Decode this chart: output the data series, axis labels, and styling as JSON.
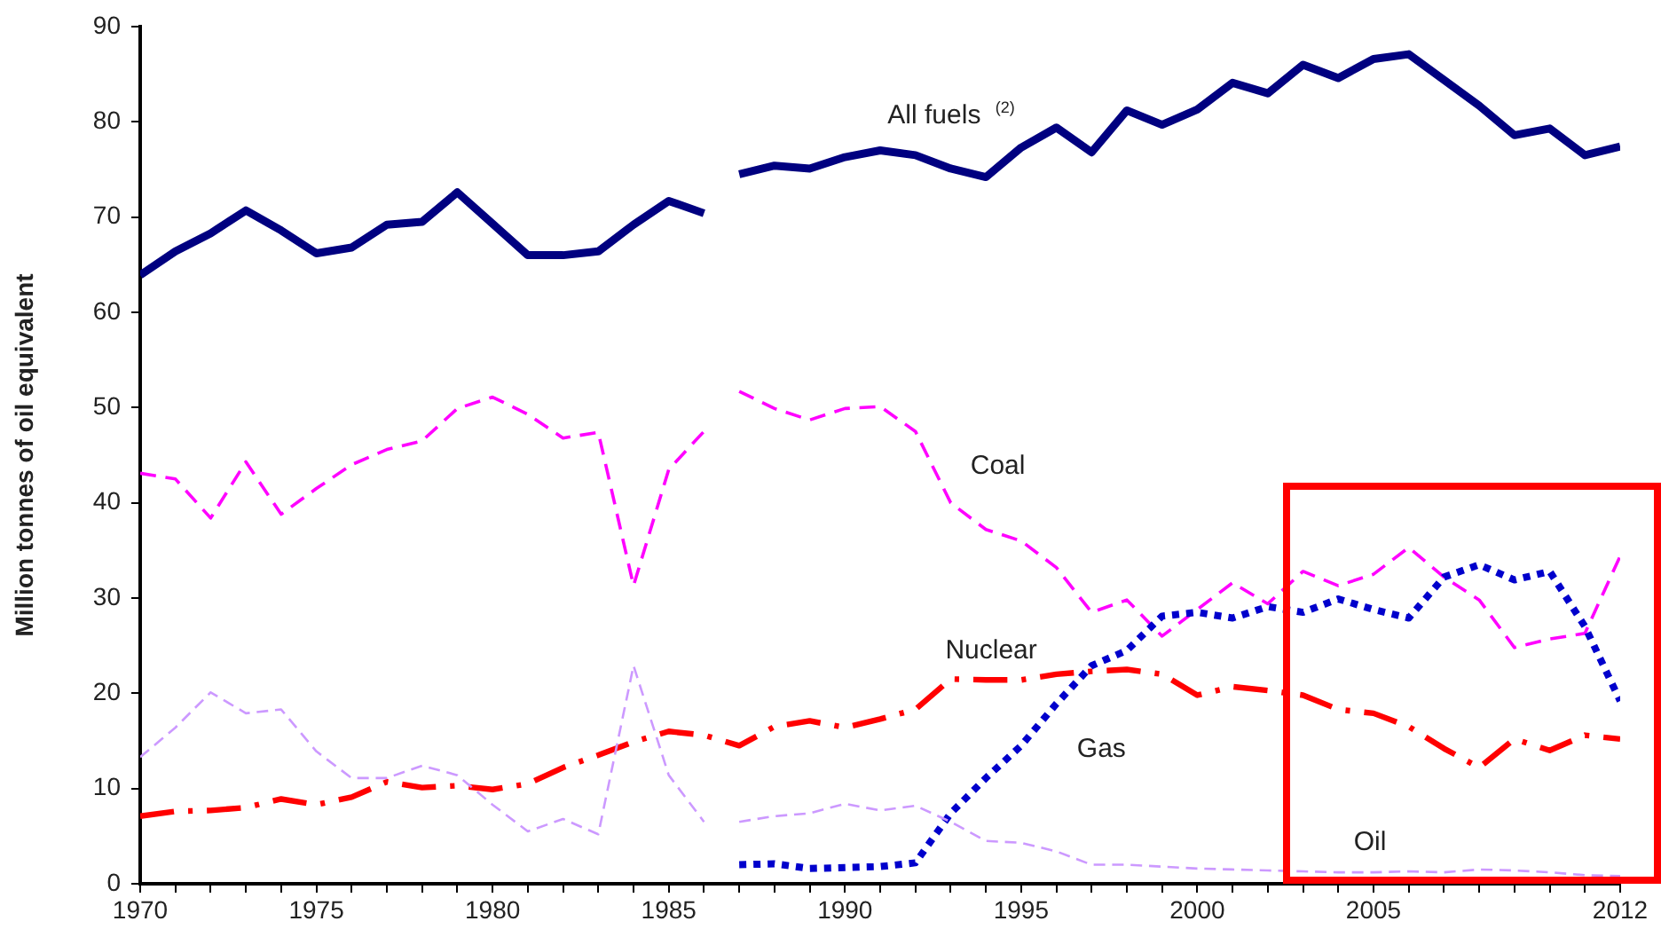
{
  "chart_data": {
    "type": "line",
    "ylabel": "Million tonnes of oil equivalent",
    "x": [
      1970,
      1971,
      1972,
      1973,
      1974,
      1975,
      1976,
      1977,
      1978,
      1979,
      1980,
      1981,
      1982,
      1983,
      1984,
      1985,
      1986,
      1986.5,
      1987,
      1988,
      1989,
      1990,
      1991,
      1992,
      1993,
      1994,
      1995,
      1996,
      1997,
      1998,
      1999,
      2000,
      2001,
      2002,
      2003,
      2004,
      2005,
      2006,
      2007,
      2008,
      2009,
      2010,
      2011,
      2012
    ],
    "xlim": [
      1970,
      2012
    ],
    "xticks": [
      1970,
      {
        "value": 1971,
        "label": null
      },
      {
        "value": 1972,
        "label": null
      },
      {
        "value": 1973,
        "label": null
      },
      {
        "value": 1974,
        "label": null
      },
      1975,
      {
        "value": 1976,
        "label": null
      },
      {
        "value": 1977,
        "label": null
      },
      {
        "value": 1978,
        "label": null
      },
      {
        "value": 1979,
        "label": null
      },
      1980,
      {
        "value": 1981,
        "label": null
      },
      {
        "value": 1982,
        "label": null
      },
      {
        "value": 1983,
        "label": null
      },
      {
        "value": 1984,
        "label": null
      },
      1985,
      {
        "value": 1986,
        "label": null
      },
      {
        "value": 1987,
        "label": null
      },
      {
        "value": 1988,
        "label": null
      },
      {
        "value": 1989,
        "label": null
      },
      1990,
      {
        "value": 1991,
        "label": null
      },
      {
        "value": 1992,
        "label": null
      },
      {
        "value": 1993,
        "label": null
      },
      {
        "value": 1994,
        "label": null
      },
      1995,
      {
        "value": 1996,
        "label": null
      },
      {
        "value": 1997,
        "label": null
      },
      {
        "value": 1998,
        "label": null
      },
      {
        "value": 1999,
        "label": null
      },
      2000,
      {
        "value": 2001,
        "label": null
      },
      {
        "value": 2002,
        "label": null
      },
      {
        "value": 2003,
        "label": null
      },
      {
        "value": 2004,
        "label": null
      },
      2005,
      {
        "value": 2006,
        "label": null
      },
      {
        "value": 2007,
        "label": null
      },
      {
        "value": 2008,
        "label": null
      },
      {
        "value": 2009,
        "label": null
      },
      {
        "value": 2010,
        "label": null
      },
      {
        "value": 2011,
        "label": null
      },
      2012
    ],
    "ylim": [
      0,
      90
    ],
    "yticks": [
      0,
      10,
      20,
      30,
      40,
      50,
      60,
      70,
      80,
      90
    ],
    "series": [
      {
        "name": "All fuels $^{(2)}$",
        "color": "#000080",
        "line_style": "solid",
        "values": [
          63.9,
          66.4,
          68.3,
          70.7,
          68.6,
          66.2,
          66.8,
          69.2,
          69.5,
          72.6,
          69.3,
          66.0,
          66.0,
          66.4,
          69.2,
          71.7,
          70.4,
          null,
          74.5,
          75.4,
          75.1,
          76.3,
          77.0,
          76.5,
          75.1,
          74.2,
          77.3,
          79.4,
          76.8,
          81.2,
          79.7,
          81.3,
          84.1,
          83.0,
          86.0,
          84.6,
          86.6,
          87.1,
          84.4,
          81.7,
          78.6,
          79.3,
          76.5,
          77.4
        ]
      },
      {
        "name": "Coal",
        "color": "#ff00ff",
        "line_style": "dashed",
        "values": [
          43.1,
          42.5,
          38.4,
          44.3,
          38.8,
          41.5,
          44.0,
          45.6,
          46.5,
          49.9,
          51.1,
          49.3,
          46.8,
          47.4,
          31.3,
          43.5,
          47.5,
          null,
          51.7,
          49.9,
          48.7,
          49.9,
          50.1,
          47.5,
          40.0,
          37.2,
          36.0,
          33.2,
          28.5,
          29.8,
          26.0,
          28.8,
          31.6,
          29.4,
          32.8,
          31.3,
          32.5,
          35.3,
          32.2,
          29.8,
          24.8,
          25.7,
          26.3,
          34.4
        ]
      },
      {
        "name": "Nuclear",
        "color": "#ff0000",
        "line_style": "dashdot",
        "x": [
          1970,
          1971,
          1972,
          1973,
          1974,
          1975,
          1976,
          1977,
          1978,
          1979,
          1980,
          1981,
          1982,
          1983,
          1984,
          1985,
          1986,
          1987,
          1988,
          1989,
          1990,
          1991,
          1992,
          1993,
          1994,
          1995,
          1996,
          1997,
          1998,
          1999,
          2000,
          2001,
          2002,
          2003,
          2004,
          2005,
          2006,
          2007,
          2008,
          2009,
          2010,
          2011,
          2012
        ],
        "values": [
          7.1,
          7.6,
          7.7,
          8.0,
          8.9,
          8.3,
          9.1,
          10.7,
          10.1,
          10.3,
          9.9,
          10.5,
          12.2,
          13.5,
          14.9,
          16.0,
          15.6,
          14.5,
          16.5,
          17.1,
          16.4,
          17.3,
          18.3,
          21.5,
          21.4,
          21.4,
          22.0,
          22.3,
          22.5,
          22.0,
          19.8,
          20.7,
          20.3,
          19.8,
          18.3,
          17.9,
          16.5,
          14.2,
          12.2,
          15.2,
          14.0,
          15.6,
          15.2
        ]
      },
      {
        "name": "Gas",
        "color": "#0000cc",
        "line_style": "dotted",
        "x": [
          1987,
          1988,
          1989,
          1990,
          1991,
          1992,
          1993,
          1994,
          1995,
          1996,
          1997,
          1998,
          1999,
          2000,
          2001,
          2002,
          2003,
          2004,
          2005,
          2006,
          2007,
          2008,
          2009,
          2010,
          2011,
          2012
        ],
        "values": [
          2.0,
          2.1,
          1.6,
          1.7,
          1.8,
          2.2,
          7.4,
          11.1,
          14.5,
          18.9,
          22.9,
          24.5,
          28.1,
          28.5,
          27.9,
          29.1,
          28.5,
          29.9,
          28.8,
          27.9,
          32.2,
          33.5,
          31.9,
          32.8,
          27.0,
          19.2
        ]
      },
      {
        "name": "Oil",
        "color": "#cc99ff",
        "line_style": "dashed",
        "values": [
          13.3,
          16.4,
          20.1,
          17.9,
          18.3,
          13.9,
          11.1,
          11.1,
          12.4,
          11.4,
          8.3,
          5.5,
          6.8,
          5.2,
          22.9,
          11.4,
          6.5,
          null,
          6.5,
          7.1,
          7.4,
          8.4,
          7.7,
          8.2,
          6.5,
          4.5,
          4.3,
          3.4,
          2.0,
          2.0,
          1.8,
          1.6,
          1.5,
          1.4,
          1.3,
          1.2,
          1.2,
          1.3,
          1.2,
          1.5,
          1.4,
          1.2,
          0.9,
          0.8
        ]
      }
    ],
    "marker": "none",
    "grid": false,
    "legend": false
  }
}
